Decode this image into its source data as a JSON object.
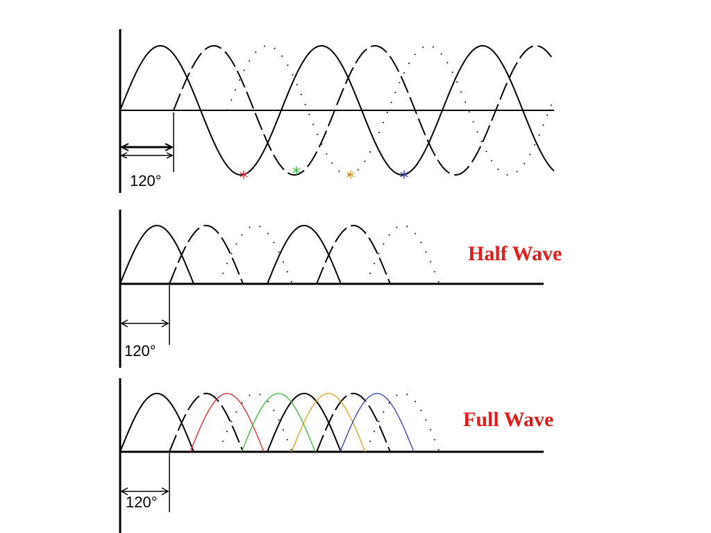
{
  "panels": {
    "three_phase": {
      "angle_label": "120°",
      "peak_markers": [
        {
          "symbol": "*",
          "color": "#d8262c"
        },
        {
          "symbol": "*",
          "color": "#3fbf3f"
        },
        {
          "symbol": "*",
          "color": "#d4a017"
        },
        {
          "symbol": "*",
          "color": "#2b3a9c"
        }
      ]
    },
    "half_wave": {
      "angle_label": "120°",
      "title": "Half Wave",
      "title_color": "#e31b1b"
    },
    "full_wave": {
      "angle_label": "120°",
      "title": "Full Wave",
      "title_color": "#e31b1b",
      "pulse_colors": [
        "#e02020",
        "#33bb33",
        "#d4a017",
        "#2b3aa8"
      ]
    }
  }
}
